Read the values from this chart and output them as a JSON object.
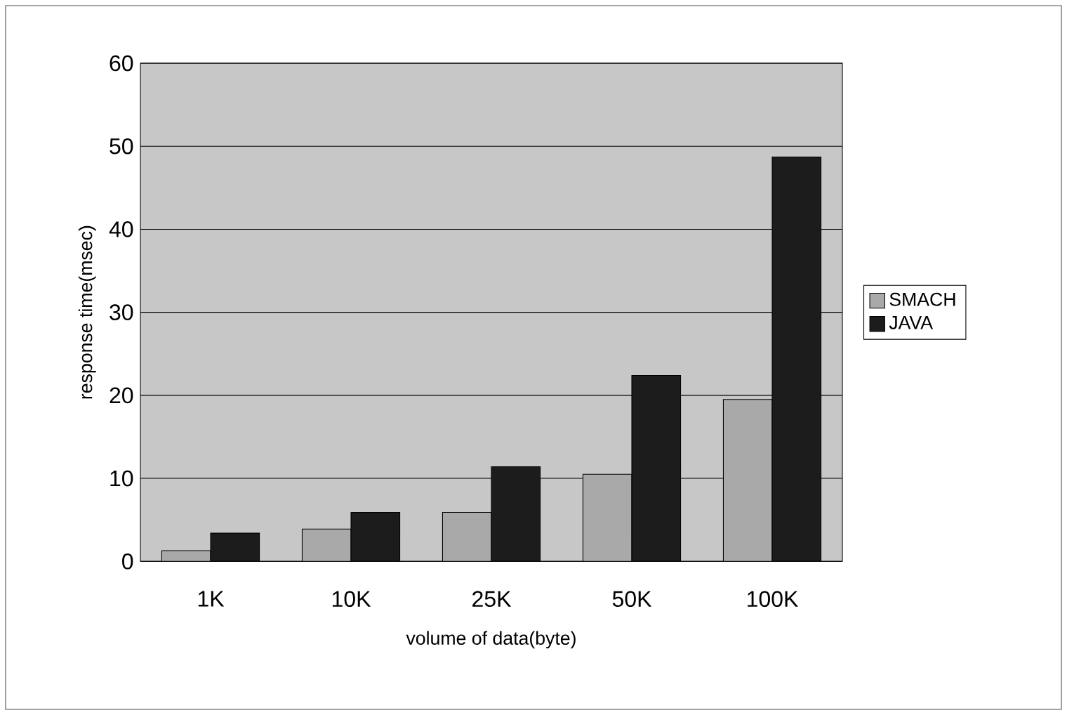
{
  "chart_data": {
    "type": "bar",
    "xlabel": "volume of data(byte)",
    "ylabel": "response time(msec)",
    "categories": [
      "1K",
      "10K",
      "25K",
      "50K",
      "100K"
    ],
    "series": [
      {
        "name": "SMACH",
        "color": "#a9a9a9",
        "values": [
          1.3,
          3.9,
          5.9,
          10.5,
          19.5
        ]
      },
      {
        "name": "JAVA",
        "color": "#1c1c1c",
        "values": [
          3.4,
          5.9,
          11.4,
          22.4,
          48.7
        ]
      }
    ],
    "ylim": [
      0,
      60
    ],
    "yticks": [
      0,
      10,
      20,
      30,
      40,
      50,
      60
    ],
    "grid": "y",
    "legend": "right"
  }
}
